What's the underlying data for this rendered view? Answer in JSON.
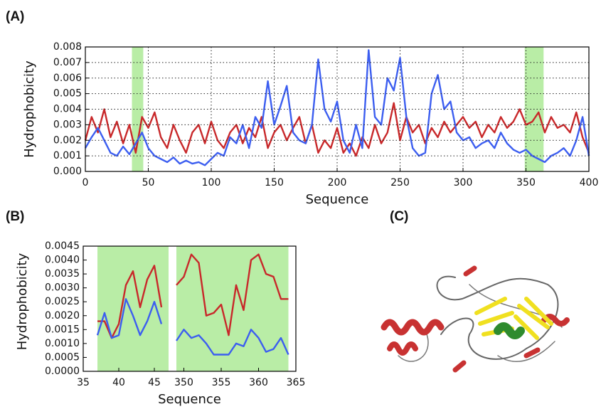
{
  "chart_data": [
    {
      "type": "line",
      "label": "(A)",
      "xlabel": "Sequence",
      "ylabel": "Hydrophobicity",
      "xlim": [
        0,
        400
      ],
      "xticks": [
        0,
        50,
        100,
        150,
        200,
        250,
        300,
        350,
        400
      ],
      "ylim": [
        0,
        0.008
      ],
      "yticks": [
        {
          "value": 0,
          "label": "0.000"
        },
        {
          "value": 0.001,
          "label": "0.001"
        },
        {
          "value": 0.002,
          "label": "0.002"
        },
        {
          "value": 0.003,
          "label": "0.003"
        },
        {
          "value": 0.004,
          "label": "0.004"
        },
        {
          "value": 0.005,
          "label": "0.005"
        },
        {
          "value": 0.006,
          "label": "0.006"
        },
        {
          "value": 0.007,
          "label": "0.007"
        },
        {
          "value": 0.008,
          "label": "0.008"
        }
      ],
      "grid": true,
      "highlight_color": "#a8e890",
      "highlights": [
        [
          37,
          46
        ],
        [
          349,
          364
        ]
      ],
      "x": [
        0,
        5,
        10,
        15,
        20,
        25,
        30,
        35,
        40,
        45,
        50,
        55,
        60,
        65,
        70,
        75,
        80,
        85,
        90,
        95,
        100,
        105,
        110,
        115,
        120,
        125,
        130,
        135,
        140,
        145,
        150,
        155,
        160,
        165,
        170,
        175,
        180,
        185,
        190,
        195,
        200,
        205,
        210,
        215,
        220,
        225,
        230,
        235,
        240,
        245,
        250,
        255,
        260,
        265,
        270,
        275,
        280,
        285,
        290,
        295,
        300,
        305,
        310,
        315,
        320,
        325,
        330,
        335,
        340,
        345,
        350,
        355,
        360,
        365,
        370,
        375,
        380,
        385,
        390,
        395,
        400
      ],
      "series": [
        {
          "color": "#c8282a",
          "values": [
            0.002,
            0.0035,
            0.0025,
            0.004,
            0.0022,
            0.0032,
            0.0018,
            0.003,
            0.0012,
            0.0035,
            0.0028,
            0.0038,
            0.0022,
            0.0015,
            0.003,
            0.002,
            0.0012,
            0.0025,
            0.003,
            0.0018,
            0.0032,
            0.002,
            0.0015,
            0.0025,
            0.003,
            0.0018,
            0.0028,
            0.0022,
            0.0035,
            0.0015,
            0.0025,
            0.003,
            0.002,
            0.0028,
            0.0035,
            0.0018,
            0.003,
            0.0012,
            0.002,
            0.0015,
            0.0028,
            0.0012,
            0.0018,
            0.001,
            0.0022,
            0.0015,
            0.003,
            0.0018,
            0.0025,
            0.0044,
            0.002,
            0.0035,
            0.0025,
            0.003,
            0.0018,
            0.0028,
            0.0022,
            0.0032,
            0.0025,
            0.003,
            0.0035,
            0.0028,
            0.0032,
            0.0022,
            0.003,
            0.0025,
            0.0035,
            0.0028,
            0.0032,
            0.004,
            0.003,
            0.0032,
            0.0038,
            0.0025,
            0.0035,
            0.0028,
            0.003,
            0.0025,
            0.0038,
            0.0022,
            0.0012
          ]
        },
        {
          "color": "#3c5ef0",
          "values": [
            0.0015,
            0.0022,
            0.0028,
            0.002,
            0.0012,
            0.001,
            0.0016,
            0.0011,
            0.0018,
            0.0025,
            0.0015,
            0.001,
            0.0008,
            0.0006,
            0.0009,
            0.0005,
            0.0007,
            0.0005,
            0.0006,
            0.0004,
            0.0008,
            0.0012,
            0.001,
            0.0022,
            0.0018,
            0.003,
            0.0015,
            0.0035,
            0.0028,
            0.0058,
            0.003,
            0.0042,
            0.0055,
            0.0025,
            0.002,
            0.0018,
            0.003,
            0.0072,
            0.004,
            0.0032,
            0.0045,
            0.002,
            0.0012,
            0.003,
            0.0015,
            0.0078,
            0.0035,
            0.003,
            0.006,
            0.0052,
            0.0073,
            0.0035,
            0.0015,
            0.001,
            0.0012,
            0.005,
            0.0062,
            0.004,
            0.0045,
            0.0025,
            0.002,
            0.0022,
            0.0015,
            0.0018,
            0.002,
            0.0015,
            0.0025,
            0.0018,
            0.0014,
            0.0012,
            0.0014,
            0.001,
            0.0008,
            0.0006,
            0.001,
            0.0012,
            0.0015,
            0.001,
            0.002,
            0.0035,
            0.001
          ]
        }
      ]
    },
    {
      "type": "line",
      "label": "(B)",
      "xlabel": "Sequence",
      "ylabel": "Hydrophobicity",
      "ylim": [
        0,
        0.0045
      ],
      "yticks": [
        {
          "value": 0,
          "label": "0.0000"
        },
        {
          "value": 0.0005,
          "label": "0.0005"
        },
        {
          "value": 0.001,
          "label": "0.0010"
        },
        {
          "value": 0.0015,
          "label": "0.0015"
        },
        {
          "value": 0.002,
          "label": "0.0020"
        },
        {
          "value": 0.0025,
          "label": "0.0025"
        },
        {
          "value": 0.003,
          "label": "0.0030"
        },
        {
          "value": 0.0035,
          "label": "0.0035"
        },
        {
          "value": 0.004,
          "label": "0.0040"
        },
        {
          "value": 0.0045,
          "label": "0.0045"
        }
      ],
      "grid": false,
      "highlight_color": "#a8e890",
      "panels": [
        {
          "xlim": [
            35,
            47
          ],
          "xticks": [
            35,
            40,
            45
          ],
          "highlights": [
            [
              37,
              47
            ]
          ],
          "x": [
            37,
            38,
            39,
            40,
            41,
            42,
            43,
            44,
            45,
            46
          ],
          "series": [
            {
              "color": "#c8282a",
              "values": [
                0.0018,
                0.0018,
                0.0012,
                0.0017,
                0.0031,
                0.0036,
                0.0023,
                0.0033,
                0.0038,
                0.0023
              ]
            },
            {
              "color": "#3c5ef0",
              "values": [
                0.0013,
                0.0021,
                0.0012,
                0.0013,
                0.0026,
                0.002,
                0.0013,
                0.0018,
                0.0025,
                0.0017
              ]
            }
          ]
        },
        {
          "xlim": [
            349,
            365
          ],
          "xticks": [
            350,
            355,
            360,
            365
          ],
          "highlights": [
            [
              349,
              364
            ]
          ],
          "x": [
            349,
            350,
            351,
            352,
            353,
            354,
            355,
            356,
            357,
            358,
            359,
            360,
            361,
            362,
            363,
            364
          ],
          "series": [
            {
              "color": "#c8282a",
              "values": [
                0.0031,
                0.0034,
                0.0042,
                0.0039,
                0.002,
                0.0021,
                0.0024,
                0.0013,
                0.0031,
                0.0022,
                0.004,
                0.0042,
                0.0035,
                0.0034,
                0.0026,
                0.0026
              ]
            },
            {
              "color": "#3c5ef0",
              "values": [
                0.0011,
                0.0015,
                0.0012,
                0.0013,
                0.001,
                0.0006,
                0.0006,
                0.0006,
                0.001,
                0.0009,
                0.0015,
                0.0012,
                0.0007,
                0.0008,
                0.0012,
                0.0006
              ]
            }
          ]
        }
      ]
    }
  ],
  "image": {
    "label": "(C)"
  }
}
